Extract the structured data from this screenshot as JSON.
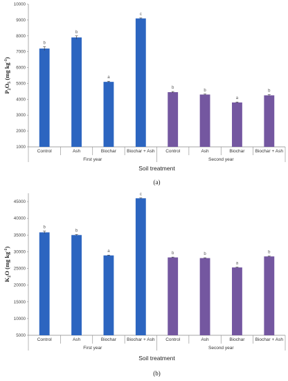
{
  "colors": {
    "first_year": "#2c65c0",
    "second_year": "#7457a0",
    "axis": "#888888"
  },
  "chart_data": [
    {
      "type": "bar",
      "panel": "(a)",
      "ylabel": "P2O5 (mg kg-1)",
      "xlabel": "Soil treatment",
      "ylim": [
        1000,
        10000
      ],
      "yticks": [
        1000,
        2000,
        3000,
        4000,
        5000,
        6000,
        7000,
        8000,
        9000,
        10000
      ],
      "categories": [
        "Control",
        "Ash",
        "Biochar",
        "Biochar + Ash",
        "Control",
        "Ash",
        "Biochar",
        "Biochar + Ash"
      ],
      "groups": [
        "First year",
        "Second year"
      ],
      "values": [
        7200,
        7900,
        5100,
        9100,
        4450,
        4300,
        3800,
        4250
      ],
      "errors": [
        120,
        100,
        40,
        30,
        40,
        30,
        30,
        40
      ],
      "labels": [
        "b",
        "b",
        "a",
        "c",
        "b",
        "b",
        "a",
        "b"
      ]
    },
    {
      "type": "bar",
      "panel": "(b)",
      "ylabel": "K2O (mg kg-1)",
      "xlabel": "Soil treatment",
      "ylim": [
        5000,
        47500
      ],
      "yticks": [
        5000,
        10000,
        15000,
        20000,
        25000,
        30000,
        35000,
        40000,
        45000
      ],
      "categories": [
        "Control",
        "Ash",
        "Biochar",
        "Biochar + Ash",
        "Control",
        "Ash",
        "Biochar",
        "Biochar + Ash"
      ],
      "groups": [
        "First year",
        "Second year"
      ],
      "values": [
        35800,
        35000,
        28900,
        46000,
        28300,
        28100,
        25300,
        28600
      ],
      "errors": [
        350,
        150,
        100,
        100,
        100,
        100,
        100,
        100
      ],
      "labels": [
        "b",
        "b",
        "a",
        "c",
        "b",
        "b",
        "a",
        "b"
      ]
    }
  ]
}
